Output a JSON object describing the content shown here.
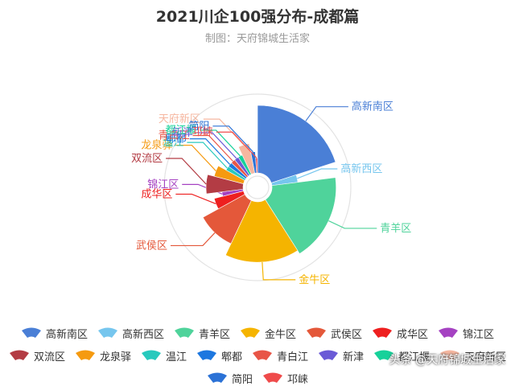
{
  "title": "2021川企100强分布-成都篇",
  "subtitle": "制图：天府锦城生活家",
  "watermark": "头条 @天府锦城生活家",
  "chart_data": {
    "type": "pie",
    "variant": "nightingale-rose",
    "title": "2021川企100强分布-成都篇",
    "subtitle": "制图：天府锦城生活家",
    "legend_position": "bottom",
    "series": [
      {
        "name": "高新南区",
        "value": 20,
        "color": "#4a7fd6"
      },
      {
        "name": "高新西区",
        "value": 3,
        "color": "#76c6ee"
      },
      {
        "name": "青羊区",
        "value": 18,
        "color": "#4fd39b"
      },
      {
        "name": "金牛区",
        "value": 16,
        "color": "#f5b400"
      },
      {
        "name": "武侯区",
        "value": 10,
        "color": "#e4583a"
      },
      {
        "name": "成华区",
        "value": 4,
        "color": "#ee1f1f"
      },
      {
        "name": "锦江区",
        "value": 2,
        "color": "#a542c2"
      },
      {
        "name": "双流区",
        "value": 6,
        "color": "#b33c44"
      },
      {
        "name": "龙泉驿",
        "value": 4,
        "color": "#f59a10"
      },
      {
        "name": "温江",
        "value": 2,
        "color": "#28c9bd"
      },
      {
        "name": "郫都",
        "value": 2,
        "color": "#1d77df"
      },
      {
        "name": "青白江",
        "value": 2,
        "color": "#e85547"
      },
      {
        "name": "新津",
        "value": 2,
        "color": "#6a5ad6"
      },
      {
        "name": "都江堰",
        "value": 2,
        "color": "#17d19a"
      },
      {
        "name": "天府新区",
        "value": 4,
        "color": "#f6b7a0"
      },
      {
        "name": "简阳",
        "value": 2,
        "color": "#2b72d6"
      },
      {
        "name": "邛崃",
        "value": 1,
        "color": "#ef4b4b"
      }
    ]
  }
}
